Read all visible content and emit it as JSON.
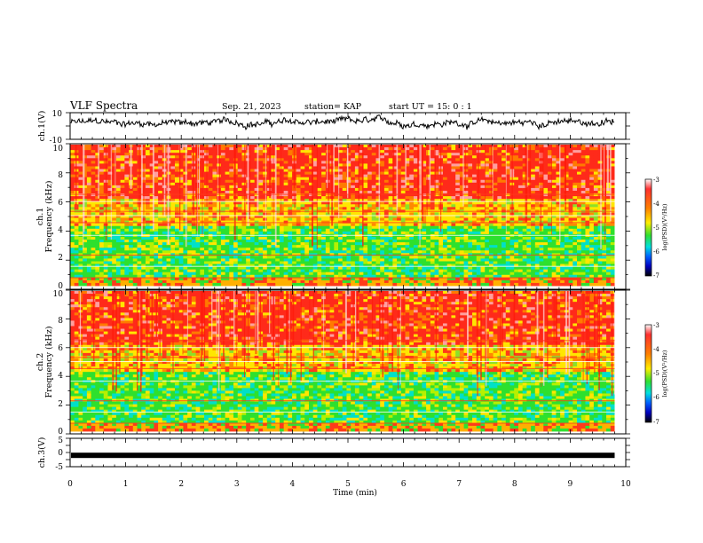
{
  "header": {
    "title": "VLF Spectra",
    "date": "Sep. 21, 2023",
    "station": "station= KAP",
    "start": "start  UT =  15: 0  : 1"
  },
  "chart_data": [
    {
      "type": "line",
      "panel": "ch1-waveform",
      "ylabel": "ch.1(V)",
      "ylim": [
        -10,
        10
      ],
      "yticks": [
        "10",
        "-10"
      ],
      "xlim": [
        0,
        10
      ],
      "color": "#000000"
    },
    {
      "type": "heatmap",
      "panel": "ch1-spectrogram",
      "ylabel_line1": "ch.1",
      "ylabel_line2": "Frequency (kHz)",
      "ylim": [
        0,
        10
      ],
      "yticks": [
        "0",
        "2",
        "4",
        "6",
        "8",
        "10"
      ],
      "xlim": [
        0,
        10
      ],
      "data_extent_min": 9.8,
      "colorbar": {
        "label": "log(PSD)(V²/Hz)",
        "range": [
          -7,
          -3
        ],
        "ticks": [
          "-3",
          "-4",
          "-5",
          "-6",
          "-7"
        ]
      }
    },
    {
      "type": "heatmap",
      "panel": "ch2-spectrogram",
      "ylabel_line1": "ch.2",
      "ylabel_line2": "Frequency (kHz)",
      "ylim": [
        0,
        10
      ],
      "yticks": [
        "0",
        "2",
        "4",
        "6",
        "8",
        "10"
      ],
      "xlim": [
        0,
        10
      ],
      "data_extent_min": 9.8,
      "colorbar": {
        "label": "log(PSD)(V²/Hz)",
        "range": [
          -7,
          -3
        ],
        "ticks": [
          "-3",
          "-4",
          "-5",
          "-6",
          "-7"
        ]
      }
    },
    {
      "type": "line",
      "panel": "ch3-waveform",
      "ylabel": "ch.3(V)",
      "ylim": [
        -5,
        5
      ],
      "yticks": [
        "5",
        "0",
        "-5"
      ],
      "xlim": [
        0,
        10
      ],
      "xlabel": "Time (min)",
      "xticks": [
        "0",
        "1",
        "2",
        "3",
        "4",
        "5",
        "6",
        "7",
        "8",
        "9",
        "10"
      ],
      "level": -1,
      "color": "#000000"
    }
  ]
}
